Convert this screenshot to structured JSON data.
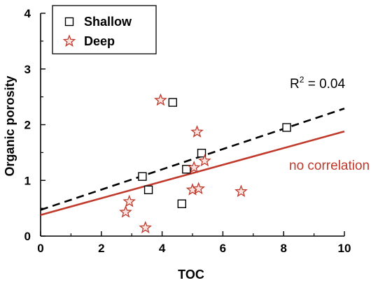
{
  "chart_data": {
    "type": "scatter",
    "xlabel": "TOC",
    "ylabel": "Organic porosity",
    "xlim": [
      0,
      10
    ],
    "ylim": [
      0,
      4
    ],
    "xticks": [
      0,
      2,
      4,
      6,
      8,
      10
    ],
    "yticks": [
      0,
      1,
      2,
      3,
      4
    ],
    "grid": false,
    "legend_position": "top-left",
    "series": [
      {
        "name": "Shallow",
        "marker": "square",
        "color": "#000000",
        "points": [
          {
            "x": 3.35,
            "y": 1.07
          },
          {
            "x": 3.55,
            "y": 0.83
          },
          {
            "x": 4.35,
            "y": 2.4
          },
          {
            "x": 4.65,
            "y": 0.58
          },
          {
            "x": 4.8,
            "y": 1.2
          },
          {
            "x": 5.3,
            "y": 1.49
          },
          {
            "x": 8.1,
            "y": 1.95
          }
        ]
      },
      {
        "name": "Deep",
        "marker": "star",
        "color": "#c0392b",
        "points": [
          {
            "x": 2.8,
            "y": 0.43
          },
          {
            "x": 2.92,
            "y": 0.62
          },
          {
            "x": 3.45,
            "y": 0.15
          },
          {
            "x": 3.95,
            "y": 2.44
          },
          {
            "x": 5.0,
            "y": 0.83
          },
          {
            "x": 5.05,
            "y": 1.23
          },
          {
            "x": 5.15,
            "y": 1.87
          },
          {
            "x": 5.2,
            "y": 0.85
          },
          {
            "x": 5.4,
            "y": 1.35
          },
          {
            "x": 6.6,
            "y": 0.8
          }
        ]
      }
    ],
    "fit_lines": [
      {
        "series": "Shallow",
        "style": "dashed",
        "color": "#000000",
        "x": [
          0,
          10
        ],
        "y": [
          0.47,
          2.29
        ]
      },
      {
        "series": "Deep",
        "style": "solid",
        "color": "#c0392b",
        "x": [
          0,
          10
        ],
        "y": [
          0.38,
          1.88
        ]
      }
    ],
    "annotations": {
      "r2_prefix": "R",
      "r2_sup": "2",
      "r2_value": " = 0.04",
      "no_correlation": "no correlation"
    }
  }
}
